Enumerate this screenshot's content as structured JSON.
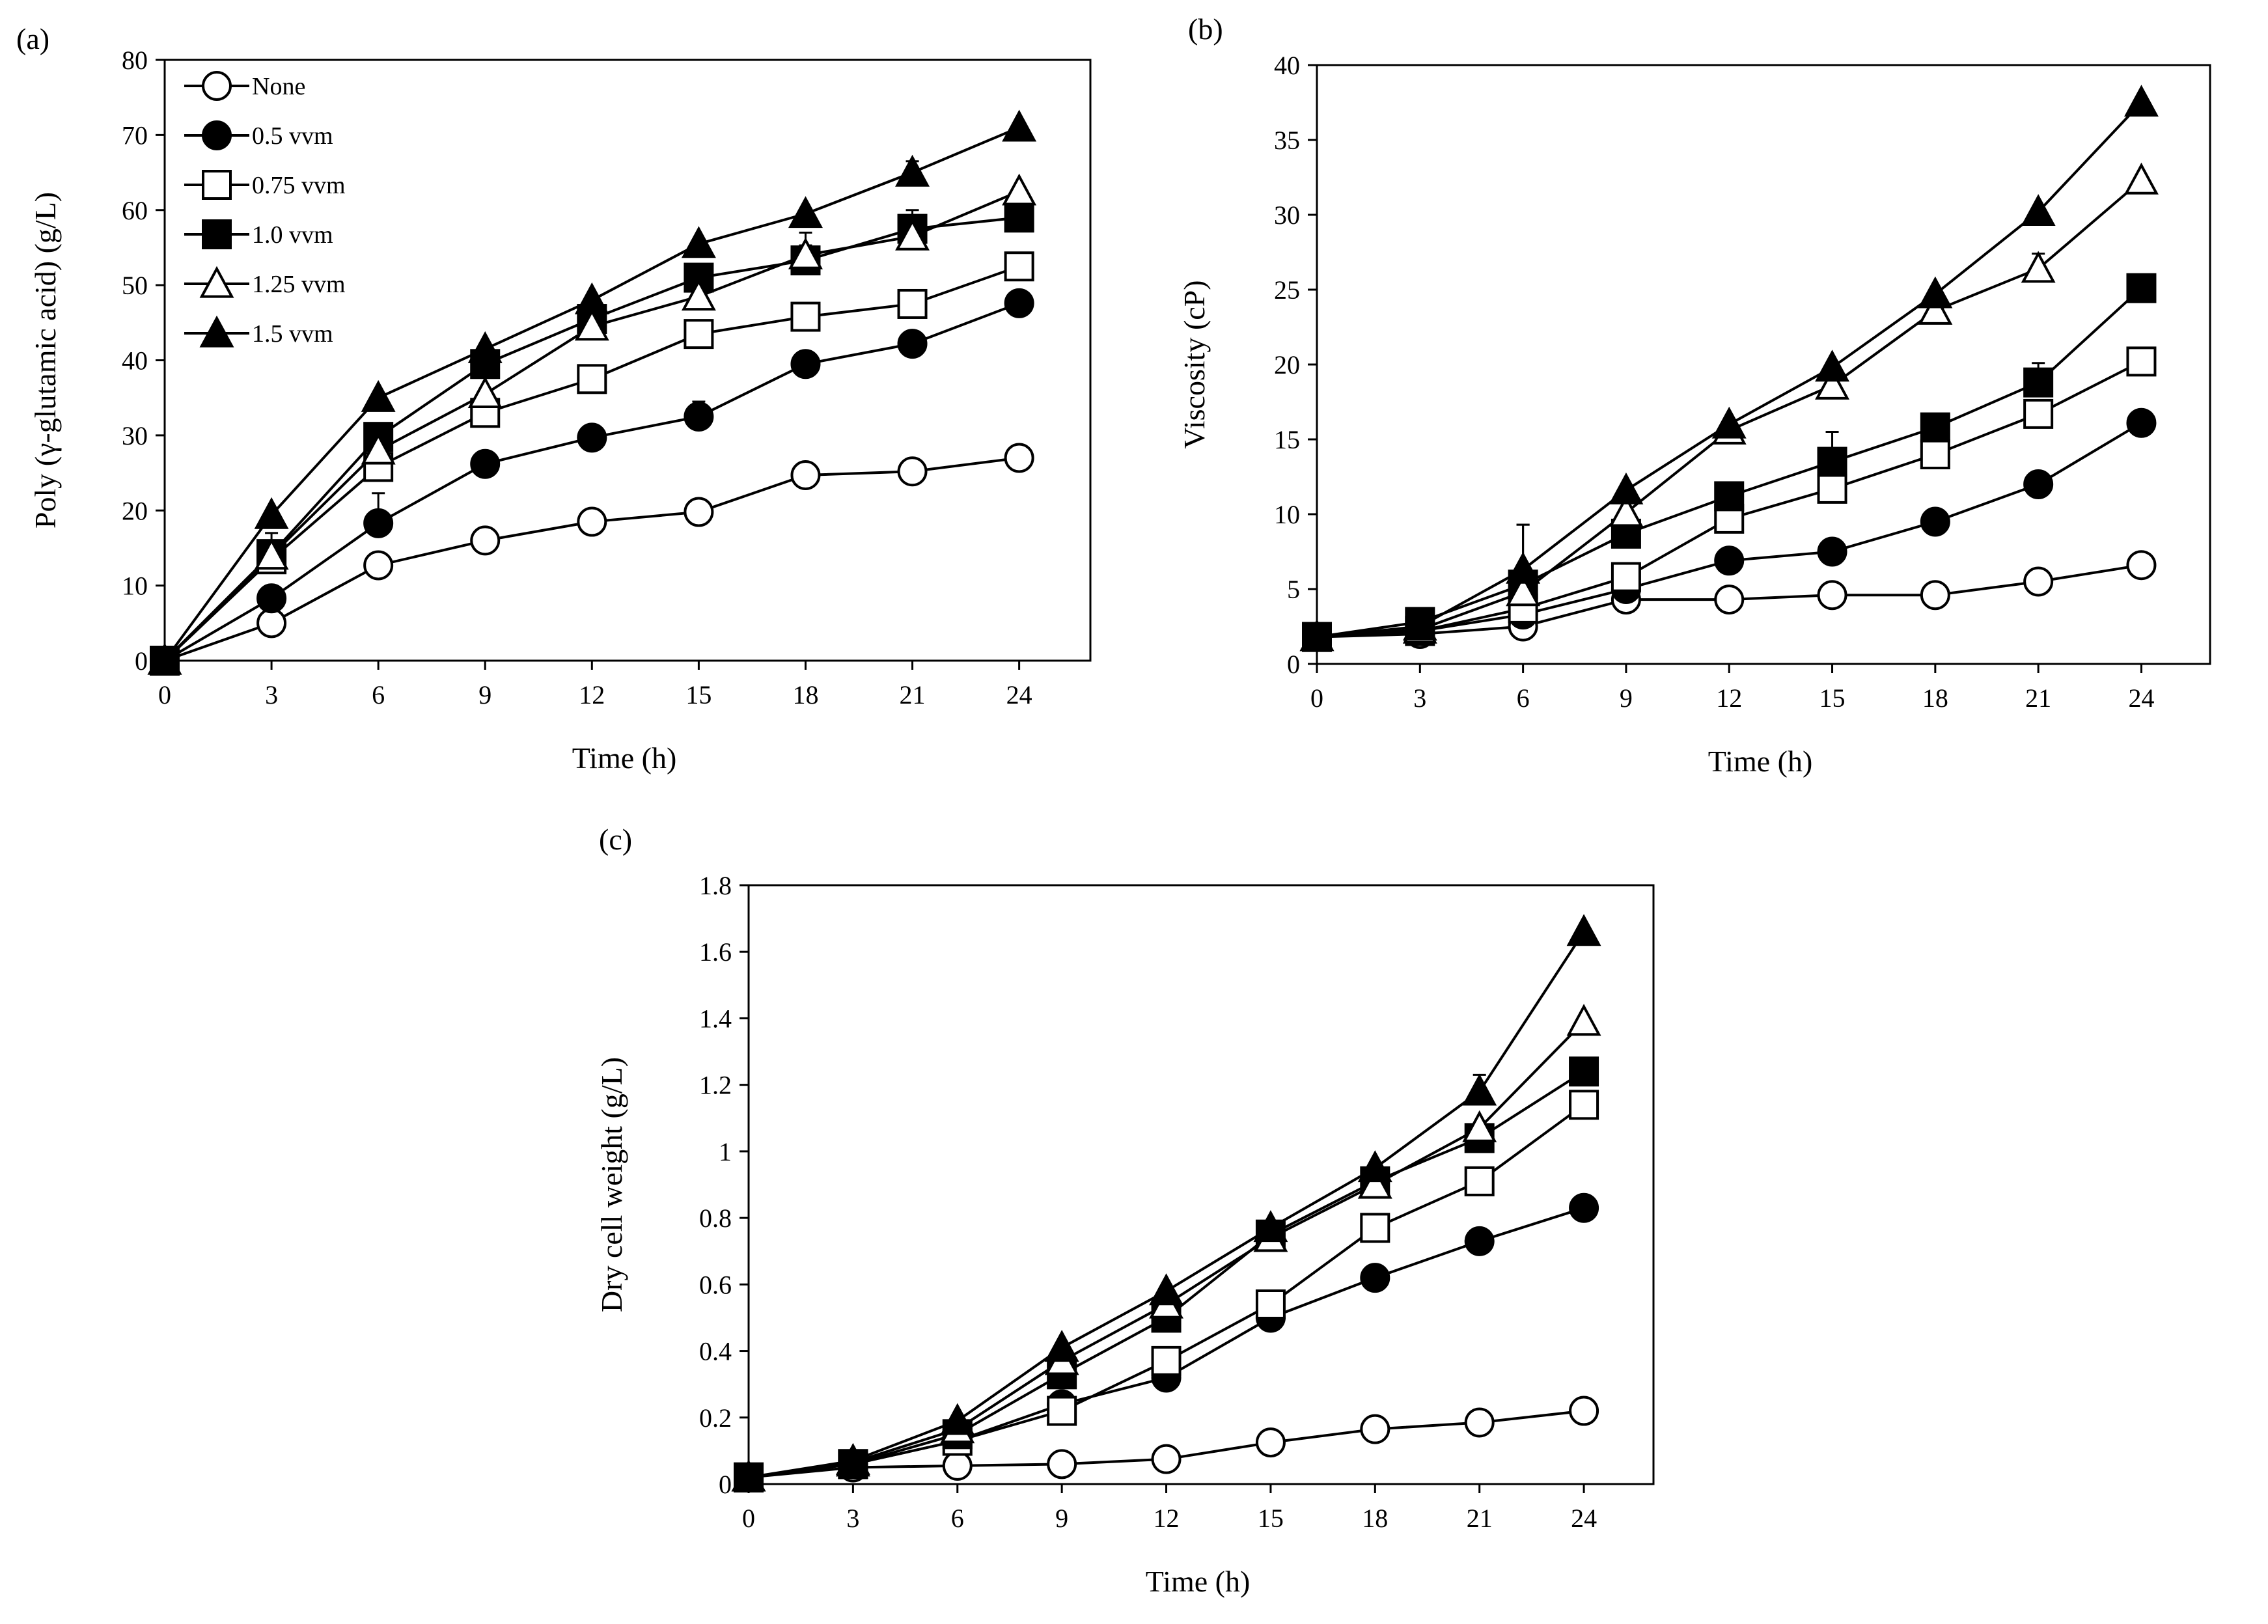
{
  "series_styles": {
    "None": {
      "marker": "circle",
      "fill": "#ffffff"
    },
    "0.5 vvm": {
      "marker": "circle",
      "fill": "#000000"
    },
    "0.75 vvm": {
      "marker": "square",
      "fill": "#ffffff"
    },
    "1.0 vvm": {
      "marker": "square",
      "fill": "#000000"
    },
    "1.25 vvm": {
      "marker": "triangle",
      "fill": "#ffffff"
    },
    "1.5 vvm": {
      "marker": "triangle",
      "fill": "#000000"
    }
  },
  "legend": {
    "entries": [
      "None",
      "0.5 vvm",
      "0.75 vvm",
      "1.0 vvm",
      "1.25 vvm",
      "1.5 vvm"
    ]
  },
  "chart_data": [
    {
      "id": "a",
      "panel_label": "(a)",
      "type": "line",
      "xlabel": "Time (h)",
      "ylabel": "Poly (γ-glutamic acid)  (g/L)",
      "x": [
        0,
        3,
        6,
        9,
        12,
        15,
        18,
        21,
        24
      ],
      "xticks": [
        "0",
        "3",
        "6",
        "9",
        "12",
        "15",
        "18",
        "21",
        "24"
      ],
      "xlim": [
        0,
        26
      ],
      "ylim": [
        0,
        80
      ],
      "yticks": [
        "0",
        "10",
        "20",
        "30",
        "40",
        "50",
        "60",
        "70",
        "80"
      ],
      "legend_position": "top-left",
      "series": [
        {
          "name": "None",
          "values": [
            0,
            5,
            12.7,
            16,
            18.5,
            19.8,
            24.7,
            25.2,
            27
          ],
          "errors": [
            0,
            0,
            0,
            0,
            0,
            0,
            0,
            0,
            0
          ]
        },
        {
          "name": "0.5 vvm",
          "values": [
            0,
            8.3,
            18.3,
            26.2,
            29.7,
            32.5,
            39.5,
            42.2,
            47.6
          ],
          "errors": [
            0,
            0,
            4,
            0,
            0,
            2,
            0,
            0,
            0
          ]
        },
        {
          "name": "0.75 vvm",
          "values": [
            0,
            13.5,
            25.8,
            33,
            37.5,
            43.5,
            45.8,
            47.5,
            52.5
          ],
          "errors": [
            0,
            0,
            0,
            0,
            0,
            0,
            0,
            0,
            0
          ]
        },
        {
          "name": "1.0 vvm",
          "values": [
            0,
            14.2,
            29.8,
            39.5,
            45.5,
            51,
            53.3,
            57.5,
            59
          ],
          "errors": [
            0,
            0,
            0,
            0,
            0,
            0,
            2,
            2.5,
            3
          ]
        },
        {
          "name": "1.25 vvm",
          "values": [
            0,
            14,
            28,
            35.5,
            44.5,
            48.5,
            54,
            56.5,
            62.5
          ],
          "errors": [
            0,
            3,
            0,
            0,
            0,
            0,
            3,
            0,
            0
          ]
        },
        {
          "name": "1.5 vvm",
          "values": [
            0,
            19.4,
            35,
            41.5,
            48,
            55.5,
            59.5,
            65,
            71
          ],
          "errors": [
            0,
            0,
            0,
            0,
            0,
            0,
            0,
            1.5,
            0
          ]
        }
      ]
    },
    {
      "id": "b",
      "panel_label": "(b)",
      "type": "line",
      "xlabel": "Time (h)",
      "ylabel": "Viscosity (cP)",
      "x": [
        0,
        3,
        6,
        9,
        12,
        15,
        18,
        21,
        24
      ],
      "xticks": [
        "0",
        "3",
        "6",
        "9",
        "12",
        "15",
        "18",
        "21",
        "24"
      ],
      "xlim": [
        0,
        26
      ],
      "ylim": [
        0,
        40
      ],
      "yticks": [
        "0",
        "5",
        "10",
        "15",
        "20",
        "25",
        "30",
        "35",
        "40"
      ],
      "series": [
        {
          "name": "None",
          "values": [
            1.8,
            2,
            2.5,
            4.3,
            4.3,
            4.6,
            4.6,
            5.5,
            6.6
          ],
          "errors": [
            0,
            0,
            0,
            0,
            0,
            0,
            0,
            0,
            0
          ]
        },
        {
          "name": "0.5 vvm",
          "values": [
            1.8,
            2.2,
            3.3,
            5,
            6.9,
            7.5,
            9.5,
            12,
            16.1
          ],
          "errors": [
            0,
            0,
            0,
            0,
            0,
            0,
            0,
            0,
            0
          ]
        },
        {
          "name": "0.75 vvm",
          "values": [
            1.8,
            2.2,
            3.7,
            5.8,
            9.7,
            11.7,
            14,
            16.7,
            20.2
          ],
          "errors": [
            0,
            0,
            0,
            0,
            0,
            0,
            0,
            0,
            0
          ]
        },
        {
          "name": "1.0 vvm",
          "values": [
            1.8,
            2.8,
            5.3,
            8.7,
            11.2,
            13.5,
            15.8,
            18.8,
            25.1
          ],
          "errors": [
            0,
            0,
            4,
            0,
            0,
            2,
            0,
            1.3,
            0
          ]
        },
        {
          "name": "1.25 vvm",
          "values": [
            1.8,
            2.3,
            4.8,
            10.1,
            15.6,
            18.6,
            23.6,
            26.4,
            32.3
          ],
          "errors": [
            0,
            0,
            0,
            0,
            0,
            0,
            0,
            1,
            0
          ]
        },
        {
          "name": "1.5 vvm",
          "values": [
            1.8,
            2.5,
            6.3,
            11.6,
            16,
            19.8,
            24.7,
            30.2,
            37.5
          ],
          "errors": [
            0,
            0,
            3,
            0,
            0,
            0,
            0,
            0,
            0
          ]
        }
      ]
    },
    {
      "id": "c",
      "panel_label": "(c)",
      "type": "line",
      "xlabel": "Time (h)",
      "ylabel": "Dry cell weight (g/L)",
      "x": [
        0,
        3,
        6,
        9,
        12,
        15,
        18,
        21,
        24
      ],
      "xticks": [
        "0",
        "3",
        "6",
        "9",
        "12",
        "15",
        "18",
        "21",
        "24"
      ],
      "xlim": [
        0,
        26
      ],
      "ylim": [
        0,
        1.8
      ],
      "yticks": [
        "0",
        "0.2",
        "0.4",
        "0.6",
        "0.8",
        "1",
        "1.2",
        "1.4",
        "1.6",
        "1.8"
      ],
      "series": [
        {
          "name": "None",
          "values": [
            0.02,
            0.05,
            0.055,
            0.06,
            0.075,
            0.125,
            0.165,
            0.185,
            0.22
          ],
          "errors": [
            0,
            0,
            0,
            0,
            0,
            0,
            0,
            0,
            0
          ]
        },
        {
          "name": "0.5 vvm",
          "values": [
            0.02,
            0.06,
            0.13,
            0.24,
            0.32,
            0.5,
            0.62,
            0.73,
            0.83
          ],
          "errors": [
            0,
            0,
            0,
            0,
            0,
            0,
            0,
            0,
            0
          ]
        },
        {
          "name": "0.75 vvm",
          "values": [
            0.02,
            0.06,
            0.13,
            0.22,
            0.37,
            0.54,
            0.77,
            0.91,
            1.14
          ],
          "errors": [
            0,
            0,
            0,
            0,
            0,
            0,
            0,
            0,
            0
          ]
        },
        {
          "name": "1.0 vvm",
          "values": [
            0.02,
            0.06,
            0.15,
            0.33,
            0.5,
            0.75,
            0.91,
            1.04,
            1.24
          ],
          "errors": [
            0,
            0,
            0,
            0,
            0,
            0,
            0,
            0,
            0
          ]
        },
        {
          "name": "1.25 vvm",
          "values": [
            0.02,
            0.065,
            0.165,
            0.37,
            0.54,
            0.74,
            0.9,
            1.07,
            1.39
          ],
          "errors": [
            0,
            0,
            0,
            0,
            0,
            0,
            0,
            0,
            0
          ]
        },
        {
          "name": "1.5 vvm",
          "values": [
            0.02,
            0.07,
            0.19,
            0.41,
            0.58,
            0.77,
            0.95,
            1.18,
            1.66
          ],
          "errors": [
            0,
            0,
            0,
            0,
            0,
            0,
            0,
            0.05,
            0
          ]
        }
      ]
    }
  ]
}
